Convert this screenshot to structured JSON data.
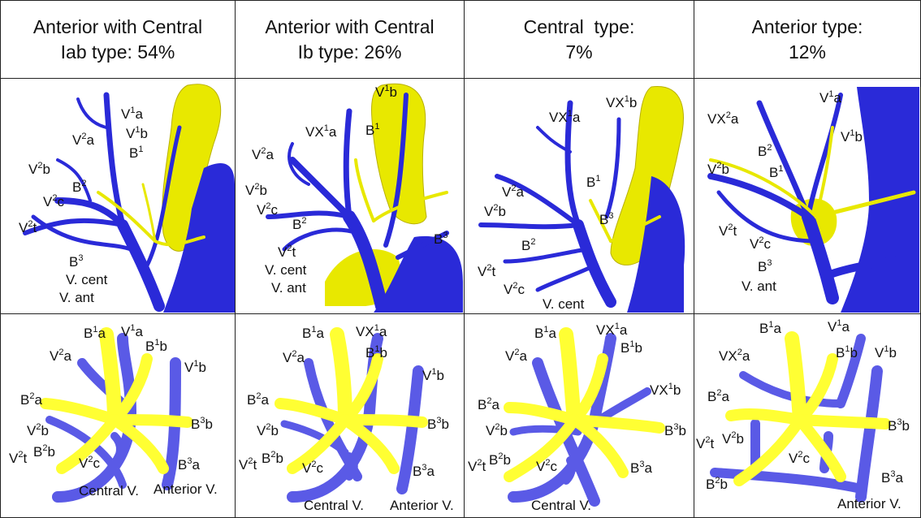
{
  "columns": [
    {
      "header_line1": "Anterior with Central",
      "header_line2": "Iab type: 54%",
      "photo_labels": [
        "V¹a",
        "V²a",
        "V¹b",
        "B¹",
        "V²b",
        "B²",
        "V²c",
        "V²t",
        "B³",
        "V. cent",
        "V. ant"
      ],
      "diagram_labels": [
        "B¹a",
        "V¹a",
        "B¹b",
        "V²a",
        "V¹b",
        "B²a",
        "B³b",
        "V²b",
        "V²t",
        "B²b",
        "V²c",
        "B³a",
        "Central V.",
        "Anterior V."
      ]
    },
    {
      "header_line1": "Anterior with Central",
      "header_line2": "Ib type: 26%",
      "photo_labels": [
        "V¹b",
        "VX¹a",
        "B¹",
        "V²a",
        "V²b",
        "V²c",
        "B²",
        "B³",
        "V²t",
        "V. cent",
        "V. ant"
      ],
      "diagram_labels": [
        "B¹a",
        "VX¹a",
        "V²a",
        "B¹b",
        "V¹b",
        "B²a",
        "B³b",
        "V²b",
        "V²t",
        "B²b",
        "V²c",
        "B³a",
        "Central V.",
        "Anterior V."
      ]
    },
    {
      "header_line1": "Central  type:",
      "header_line2": "7%",
      "photo_labels": [
        "VX¹a",
        "VX¹b",
        "V²a",
        "B¹",
        "V²b",
        "B³",
        "B²",
        "V²t",
        "V²c",
        "V. cent"
      ],
      "diagram_labels": [
        "B¹a",
        "VX¹a",
        "V²a",
        "B¹b",
        "VX¹b",
        "B²a",
        "B³b",
        "V²b",
        "V²t",
        "B²b",
        "V²c",
        "B³a",
        "Central V."
      ]
    },
    {
      "header_line1": "Anterior type:",
      "header_line2": "12%",
      "photo_labels": [
        "V¹a",
        "VX²a",
        "V¹b",
        "B²",
        "V²b",
        "B¹",
        "V²t",
        "V²c",
        "B³",
        "V. ant"
      ],
      "diagram_labels": [
        "B¹a",
        "V¹a",
        "VX²a",
        "B¹b",
        "V¹b",
        "B²a",
        "V²t",
        "V²b",
        "V²c",
        "B³b",
        "B²b",
        "B³a",
        "Anterior V."
      ]
    }
  ],
  "colors": {
    "vein": "#2a2ad8",
    "bronchus": "#f2f000",
    "artery_yellow": "#e8e800",
    "diagram_vein": "#5a5ae6",
    "diagram_bronchus": "#ffff33",
    "border": "#222222"
  }
}
